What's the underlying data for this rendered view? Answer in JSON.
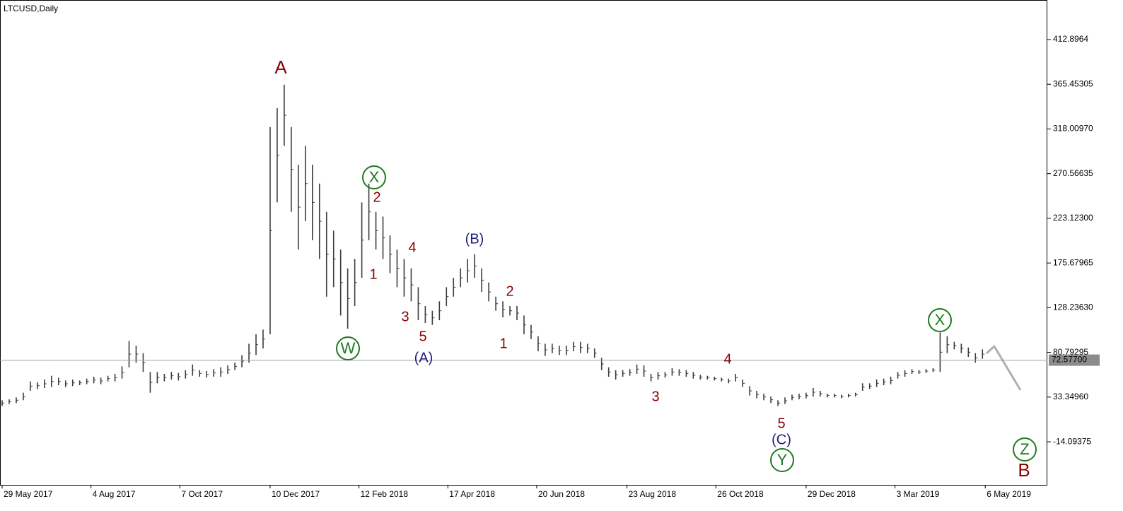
{
  "chart_data": {
    "type": "ohlc",
    "title": "LTCUSD,Daily",
    "color": "#3c3c3c",
    "x": [
      0,
      5,
      10,
      15,
      20,
      25,
      30,
      35,
      40,
      45,
      50,
      55,
      60,
      65,
      70,
      75,
      80,
      85,
      90,
      95,
      100,
      105,
      110,
      115,
      120,
      125,
      130,
      135,
      140,
      145,
      150,
      155,
      160,
      165,
      170,
      175,
      180,
      185,
      190,
      195,
      200,
      205,
      210,
      215,
      220,
      225,
      230,
      235,
      240,
      245,
      250,
      255,
      260,
      265,
      270,
      275,
      280,
      285,
      290,
      295,
      300,
      305,
      310,
      315,
      320,
      325,
      330,
      335,
      340,
      345,
      350,
      355,
      360,
      365,
      370,
      375,
      380,
      385,
      390,
      395,
      400,
      405,
      410,
      415,
      420,
      425,
      430,
      435,
      440,
      445,
      450,
      455,
      460,
      465,
      470,
      475,
      480,
      485,
      490,
      495,
      500,
      505,
      510,
      515,
      520,
      525,
      530,
      535,
      540,
      545,
      550,
      555,
      560,
      565,
      570,
      575,
      580,
      585,
      590,
      595,
      600,
      605,
      610,
      615,
      620,
      625,
      630,
      635,
      640,
      645,
      650,
      655,
      660,
      665,
      670,
      675,
      680,
      685,
      690,
      695
    ],
    "high": [
      30,
      31,
      33,
      38,
      50,
      49,
      52,
      56,
      54,
      51,
      52,
      51,
      53,
      55,
      54,
      56,
      58,
      66,
      93,
      88,
      80,
      60,
      60,
      58,
      60,
      59,
      62,
      68,
      62,
      61,
      63,
      65,
      67,
      70,
      78,
      90,
      100,
      105,
      320,
      340,
      365,
      320,
      280,
      300,
      280,
      260,
      230,
      210,
      190,
      170,
      180,
      240,
      260,
      230,
      225,
      205,
      190,
      180,
      170,
      150,
      130,
      125,
      135,
      150,
      160,
      170,
      180,
      185,
      170,
      155,
      140,
      135,
      130,
      130,
      120,
      110,
      98,
      90,
      90,
      88,
      88,
      92,
      92,
      90,
      85,
      75,
      65,
      62,
      62,
      63,
      68,
      67,
      58,
      60,
      60,
      64,
      63,
      62,
      60,
      57,
      56,
      55,
      54,
      53,
      58,
      52,
      45,
      40,
      37,
      34,
      30,
      33,
      36,
      37,
      38,
      43,
      40,
      37,
      37,
      36,
      37,
      38,
      48,
      48,
      52,
      53,
      55,
      60,
      62,
      63,
      62,
      63,
      64,
      102,
      98,
      92,
      90,
      86,
      80,
      84
    ],
    "low": [
      24,
      26,
      27,
      30,
      40,
      42,
      43,
      44,
      46,
      44,
      45,
      46,
      47,
      48,
      47,
      50,
      50,
      53,
      65,
      70,
      60,
      38,
      48,
      50,
      52,
      51,
      53,
      56,
      55,
      54,
      55,
      55,
      58,
      62,
      65,
      70,
      78,
      85,
      100,
      240,
      300,
      230,
      190,
      220,
      200,
      180,
      140,
      150,
      120,
      106,
      130,
      160,
      200,
      190,
      180,
      165,
      150,
      140,
      135,
      115,
      112,
      110,
      115,
      130,
      140,
      150,
      155,
      160,
      145,
      135,
      125,
      118,
      120,
      115,
      100,
      95,
      82,
      77,
      80,
      78,
      78,
      82,
      80,
      80,
      75,
      62,
      55,
      52,
      55,
      56,
      58,
      55,
      50,
      52,
      54,
      56,
      56,
      55,
      53,
      52,
      52,
      51,
      50,
      48,
      50,
      44,
      35,
      32,
      30,
      27,
      24,
      26,
      30,
      31,
      32,
      34,
      34,
      33,
      33,
      32,
      33,
      34,
      40,
      42,
      44,
      46,
      47,
      53,
      55,
      58,
      58,
      59,
      60,
      60,
      80,
      84,
      80,
      76,
      70,
      74
    ],
    "xlim": [
      -1.5,
      741
    ],
    "xticks": [
      {
        "value": 0,
        "label": "29 May 2017"
      },
      {
        "value": 63,
        "label": "4 Aug 2017"
      },
      {
        "value": 126,
        "label": "7 Oct 2017"
      },
      {
        "value": 190,
        "label": "10 Dec 2017"
      },
      {
        "value": 253,
        "label": "12 Feb 2018"
      },
      {
        "value": 316,
        "label": "17 Apr 2018"
      },
      {
        "value": 379,
        "label": "20 Jun 2018"
      },
      {
        "value": 443,
        "label": "23 Aug 2018"
      },
      {
        "value": 506,
        "label": "26 Oct 2018"
      },
      {
        "value": 570,
        "label": "29 Dec 2018"
      },
      {
        "value": 633,
        "label": "3 Mar 2019"
      },
      {
        "value": 697,
        "label": "6 May 2019"
      }
    ],
    "ylim": [
      -59.8,
      454.9
    ],
    "yticks": [
      412.8964,
      365.45305,
      {
        "value": 318.0097,
        "label": "318.00970"
      },
      270.56635,
      {
        "value": 223.123,
        "label": "223.12300"
      },
      175.67965,
      {
        "value": 128.2363,
        "label": "128.23630"
      },
      80.79295,
      {
        "value": 33.3496,
        "label": "33.34960"
      },
      -14.09375
    ],
    "last_price": {
      "value": 72.577,
      "label": "72.57700"
    },
    "annotations": [
      {
        "text": "A",
        "color": "#8b0000",
        "circled": false
      },
      {
        "text": "X",
        "color": "#1e7a1e",
        "circled": true
      },
      {
        "text": "2",
        "color": "#8b0000",
        "circled": false
      },
      {
        "text": "4",
        "color": "#8b0000",
        "circled": false
      },
      {
        "text": "(B)",
        "color": "#1c1c7a",
        "circled": false
      },
      {
        "text": "1",
        "color": "#8b0000",
        "circled": false
      },
      {
        "text": "2",
        "color": "#8b0000",
        "circled": false
      },
      {
        "text": "3",
        "color": "#8b0000",
        "circled": false
      },
      {
        "text": "5",
        "color": "#8b0000",
        "circled": false
      },
      {
        "text": "W",
        "color": "#1e7a1e",
        "circled": true
      },
      {
        "text": "(A)",
        "color": "#1c1c7a",
        "circled": false
      },
      {
        "text": "1",
        "color": "#8b0000",
        "circled": false
      },
      {
        "text": "4",
        "color": "#8b0000",
        "circled": false
      },
      {
        "text": "3",
        "color": "#8b0000",
        "circled": false
      },
      {
        "text": "5",
        "color": "#8b0000",
        "circled": false
      },
      {
        "text": "(C)",
        "color": "#1c1c7a",
        "circled": false
      },
      {
        "text": "Y",
        "color": "#1e7a1e",
        "circled": true
      },
      {
        "text": "X",
        "color": "#1e7a1e",
        "circled": true
      },
      {
        "text": "Z",
        "color": "#1e7a1e",
        "circled": true
      },
      {
        "text": "B",
        "color": "#8b0000",
        "circled": false
      }
    ]
  }
}
